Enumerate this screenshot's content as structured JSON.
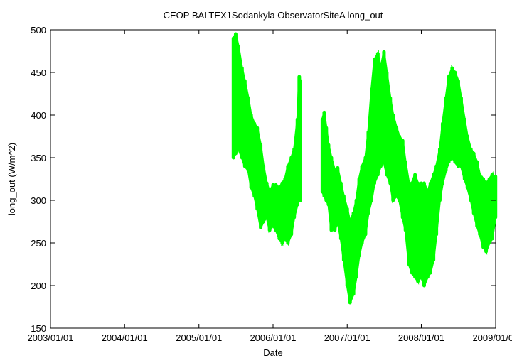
{
  "chart_data": {
    "type": "scatter",
    "title": "CEOP BALTEX1Sodankyla ObservatorSiteA  long_out",
    "xlabel": "Date",
    "ylabel": "long_out (W/m^2)",
    "ylim": [
      150,
      500
    ],
    "xlim": [
      "2003/01/01",
      "2009/01/01"
    ],
    "x_ticks": [
      "2003/01/01",
      "2004/01/01",
      "2005/01/01",
      "2006/01/01",
      "2007/01/01",
      "2008/01/01",
      "2009/01/01"
    ],
    "y_ticks": [
      150,
      200,
      250,
      300,
      350,
      400,
      450,
      500
    ],
    "grid": false,
    "legend": "none",
    "series": [
      {
        "color": "#00ff00",
        "points": [
          [
            "2005/06/20",
            350,
            490
          ],
          [
            "2005/07/01",
            355,
            495
          ],
          [
            "2005/07/15",
            360,
            480
          ],
          [
            "2005/08/01",
            350,
            455
          ],
          [
            "2005/08/15",
            340,
            440
          ],
          [
            "2005/09/01",
            335,
            420
          ],
          [
            "2005/09/15",
            315,
            400
          ],
          [
            "2005/10/01",
            305,
            390
          ],
          [
            "2005/10/15",
            290,
            385
          ],
          [
            "2005/11/01",
            268,
            365
          ],
          [
            "2005/11/15",
            275,
            340
          ],
          [
            "2005/12/01",
            280,
            320
          ],
          [
            "2005/12/15",
            265,
            310
          ],
          [
            "2006/01/01",
            270,
            318
          ],
          [
            "2006/01/15",
            265,
            318
          ],
          [
            "2006/02/01",
            255,
            315
          ],
          [
            "2006/02/15",
            250,
            320
          ],
          [
            "2006/03/01",
            255,
            325
          ],
          [
            "2006/03/15",
            250,
            340
          ],
          [
            "2006/04/01",
            260,
            350
          ],
          [
            "2006/04/15",
            280,
            360
          ],
          [
            "2006/05/01",
            295,
            395
          ],
          [
            "2006/05/10",
            300,
            445
          ],
          [
            "2006/05/15",
            300,
            440
          ],
          [
            "2006/09/01",
            310,
            395
          ],
          [
            "2006/09/10",
            305,
            403
          ],
          [
            "2006/09/20",
            300,
            385
          ],
          [
            "2006/10/01",
            295,
            365
          ],
          [
            "2006/10/15",
            265,
            350
          ],
          [
            "2006/11/01",
            265,
            335
          ],
          [
            "2006/11/15",
            275,
            338
          ],
          [
            "2006/12/01",
            255,
            320
          ],
          [
            "2006/12/15",
            230,
            305
          ],
          [
            "2007/01/01",
            200,
            290
          ],
          [
            "2007/01/15",
            180,
            275
          ],
          [
            "2007/02/01",
            190,
            285
          ],
          [
            "2007/02/15",
            210,
            300
          ],
          [
            "2007/03/01",
            235,
            325
          ],
          [
            "2007/03/15",
            250,
            340
          ],
          [
            "2007/04/01",
            260,
            350
          ],
          [
            "2007/04/15",
            285,
            380
          ],
          [
            "2007/05/01",
            300,
            430
          ],
          [
            "2007/05/15",
            320,
            465
          ],
          [
            "2007/06/01",
            330,
            472
          ],
          [
            "2007/06/15",
            340,
            455
          ],
          [
            "2007/07/01",
            345,
            474
          ],
          [
            "2007/07/15",
            330,
            450
          ],
          [
            "2007/08/01",
            320,
            420
          ],
          [
            "2007/08/15",
            300,
            400
          ],
          [
            "2007/09/01",
            305,
            385
          ],
          [
            "2007/09/15",
            300,
            375
          ],
          [
            "2007/10/01",
            280,
            370
          ],
          [
            "2007/10/15",
            265,
            345
          ],
          [
            "2007/11/01",
            225,
            320
          ],
          [
            "2007/11/15",
            215,
            320
          ],
          [
            "2007/12/01",
            210,
            330
          ],
          [
            "2007/12/15",
            205,
            320
          ],
          [
            "2008/01/01",
            210,
            320
          ],
          [
            "2008/01/15",
            200,
            320
          ],
          [
            "2008/02/01",
            210,
            310
          ],
          [
            "2008/02/15",
            215,
            320
          ],
          [
            "2008/03/01",
            230,
            330
          ],
          [
            "2008/03/15",
            260,
            340
          ],
          [
            "2008/04/01",
            300,
            360
          ],
          [
            "2008/04/15",
            320,
            390
          ],
          [
            "2008/05/01",
            335,
            420
          ],
          [
            "2008/05/15",
            345,
            445
          ],
          [
            "2008/06/01",
            350,
            455
          ],
          [
            "2008/06/15",
            345,
            450
          ],
          [
            "2008/07/01",
            340,
            440
          ],
          [
            "2008/07/15",
            340,
            420
          ],
          [
            "2008/08/01",
            325,
            395
          ],
          [
            "2008/08/15",
            315,
            375
          ],
          [
            "2008/09/01",
            300,
            360
          ],
          [
            "2008/09/15",
            285,
            355
          ],
          [
            "2008/10/01",
            270,
            345
          ],
          [
            "2008/10/15",
            260,
            330
          ],
          [
            "2008/11/01",
            245,
            325
          ],
          [
            "2008/11/15",
            240,
            320
          ],
          [
            "2008/12/01",
            250,
            325
          ],
          [
            "2008/12/15",
            255,
            330
          ],
          [
            "2008/12/31",
            280,
            328
          ]
        ]
      }
    ]
  }
}
